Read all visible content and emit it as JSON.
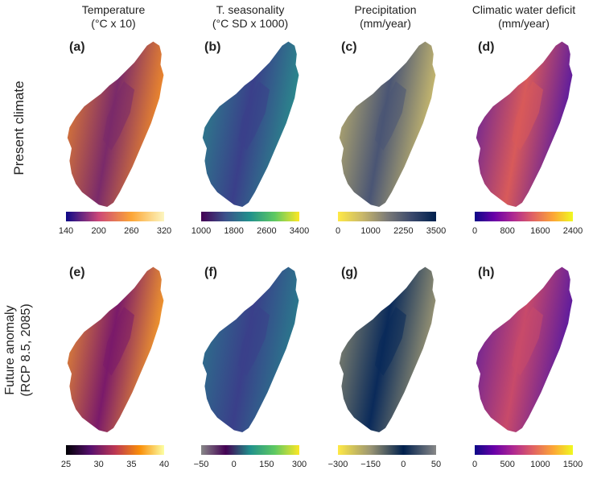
{
  "columns": [
    {
      "title": "Temperature",
      "unit": "(°C x 10)"
    },
    {
      "title": "T. seasonality",
      "unit": "(°C SD x 1000)"
    },
    {
      "title": "Precipitation",
      "unit": "(mm/year)"
    },
    {
      "title": "Climatic water deficit",
      "unit": "(mm/year)"
    }
  ],
  "rows": [
    {
      "label": "Present climate"
    },
    {
      "label_line1": "Future anomaly",
      "label_line2": "(RCP 8.5, 2085)"
    }
  ],
  "panels": [
    {
      "letter": "(a)",
      "ticks": [
        "140",
        "200",
        "260",
        "320"
      ],
      "colors": [
        "#0d0887",
        "#cc4778",
        "#fca636",
        "#fcf6c0"
      ],
      "fill": "#f08a2a",
      "fill_inner": "#7a2a6a"
    },
    {
      "letter": "(b)",
      "ticks": [
        "1000",
        "1800",
        "2600",
        "3400"
      ],
      "colors": [
        "#440154",
        "#3b528b",
        "#21918c",
        "#5ec962",
        "#fde725"
      ],
      "fill": "#2a8a8c",
      "fill_inner": "#3a3f8a"
    },
    {
      "letter": "(c)",
      "ticks": [
        "0",
        "1000",
        "2250",
        "3500"
      ],
      "colors": [
        "#ffe945",
        "#c9b86a",
        "#7c7b78",
        "#3b496c",
        "#00204d"
      ],
      "fill": "#c9ba6e",
      "fill_inner": "#4a5574"
    },
    {
      "letter": "(d)",
      "ticks": [
        "0",
        "800",
        "1600",
        "2400"
      ],
      "colors": [
        "#0d0887",
        "#6a00a8",
        "#b12a90",
        "#e16462",
        "#fca636",
        "#f0f921"
      ],
      "fill": "#5a1aa0",
      "fill_inner": "#d85a5a"
    },
    {
      "letter": "(e)",
      "ticks": [
        "25",
        "30",
        "35",
        "40"
      ],
      "colors": [
        "#000004",
        "#57106e",
        "#bc3754",
        "#f98e09",
        "#fcffa4"
      ],
      "fill": "#f59a2a",
      "fill_inner": "#7a1a6a"
    },
    {
      "letter": "(f)",
      "ticks": [
        "−50",
        "0",
        "150",
        "300"
      ],
      "colors": [
        "#888888",
        "#440154",
        "#21918c",
        "#5ec962",
        "#fde725"
      ],
      "fill": "#2a7a8c",
      "fill_inner": "#3a3f8a"
    },
    {
      "letter": "(g)",
      "ticks": [
        "−300",
        "−150",
        "0",
        "50"
      ],
      "colors": [
        "#ffe945",
        "#9a9574",
        "#00204d",
        "#888888"
      ],
      "fill": "#9a9574",
      "fill_inner": "#0a2a5a"
    },
    {
      "letter": "(h)",
      "ticks": [
        "0",
        "500",
        "1000",
        "1500"
      ],
      "colors": [
        "#0d0887",
        "#6a00a8",
        "#b12a90",
        "#e16462",
        "#fca636",
        "#f0f921"
      ],
      "fill": "#5a1aa0",
      "fill_inner": "#c84a6a"
    }
  ]
}
